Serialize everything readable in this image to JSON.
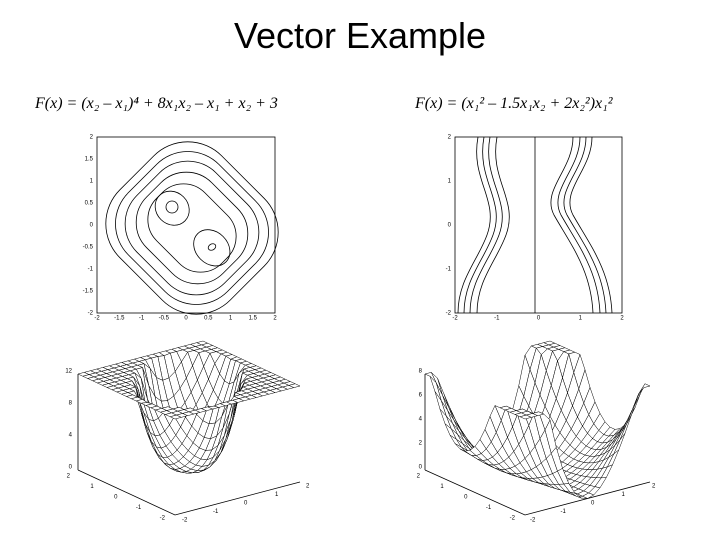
{
  "title": "Vector Example",
  "left": {
    "formula": "F(x) = (x₂ – x₁)⁴ + 8x₁x₂ – x₁ + x₂ + 3",
    "contour": {
      "xticks": [
        -2,
        -1.5,
        -1,
        -0.5,
        0,
        0.5,
        1,
        1.5,
        2
      ],
      "yticks": [
        -2,
        -1.5,
        -1,
        -0.5,
        0,
        0.5,
        1,
        1.5,
        2
      ]
    },
    "surface": {
      "zticks": [
        0,
        4,
        8,
        12
      ],
      "left_axis": [
        2,
        1,
        0,
        -1,
        -2
      ],
      "front_axis": [
        -2,
        -1,
        0,
        1,
        2
      ]
    }
  },
  "right": {
    "formula": "F(x) = (x₁² – 1.5x₁x₂ + 2x₂²)x₁²",
    "contour": {
      "xticks": [
        -2,
        -1,
        0,
        1,
        2
      ],
      "yticks": [
        -2,
        -1,
        0,
        1,
        2
      ]
    },
    "surface": {
      "zticks": [
        0,
        2,
        4,
        6,
        8
      ],
      "left_axis": [
        2,
        1,
        0,
        -1,
        -2
      ],
      "front_axis": [
        -2,
        -1,
        0,
        1,
        2
      ]
    }
  }
}
